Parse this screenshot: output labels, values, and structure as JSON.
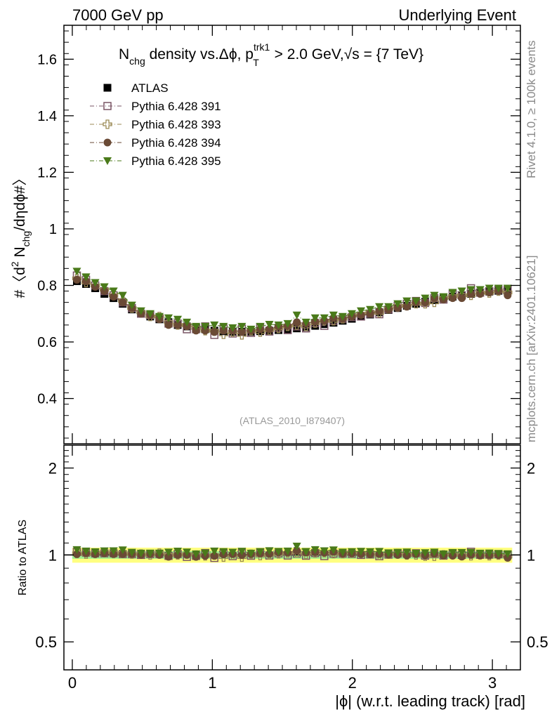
{
  "header": {
    "left": "7000 GeV pp",
    "right": "Underlying Event"
  },
  "side_labels": {
    "rivet": "Rivet 4.1.0, ≥ 100k events",
    "mcplots": "mcplots.cern.ch [arXiv:2401.10621]"
  },
  "chart_data": {
    "type": "scatter",
    "title": "N_chg density vs. Δϕ, p_T^trk1 > 2.0 GeV, √s = {7 TeV}",
    "title_parts": {
      "n": "N",
      "chg": "chg",
      "mid": " density vs.Δϕ, p",
      "trk1": "trk1",
      "t": "T",
      "tail": " > 2.0 GeV,",
      "sqrt": "√s",
      "end": " = {7 TeV}"
    },
    "watermark": "(ATLAS_2010_I879407)",
    "ylabel": "#〈d² N_chg/dηdϕ#〉",
    "ylabel_parts": {
      "a": "#〈d",
      "sq": "2",
      "b": " N",
      "chg": "chg",
      "c": "/dηdϕ#〉"
    },
    "xlabel": "|ϕ| (w.r.t. leading track) [rad]",
    "ratio_ylabel": "Ratio to ATLAS",
    "xlim": [
      -0.06,
      3.2
    ],
    "ylim": [
      0.24,
      1.72
    ],
    "ratio_ylim": [
      0.4,
      2.4
    ],
    "x_ticks": [
      0,
      1,
      2,
      3
    ],
    "x_tick_labels": [
      "0",
      "1",
      "2",
      "3"
    ],
    "y_ticks": [
      0.4,
      0.6,
      0.8,
      1,
      1.2,
      1.4,
      1.6
    ],
    "y_tick_labels": [
      "0.4",
      "0.6",
      "0.8",
      "1",
      "1.2",
      "1.4",
      "1.6"
    ],
    "ratio_ticks": [
      0.5,
      1,
      2
    ],
    "ratio_tick_labels": [
      "0.5",
      "1",
      "2"
    ],
    "legend_position": "top-left",
    "ratio_band_inner": 0.03,
    "ratio_band_outer": 0.06,
    "series": [
      {
        "name": "ATLAS",
        "marker": "square-filled",
        "color": "#000000",
        "x": [
          0.0327,
          0.0982,
          0.1636,
          0.2291,
          0.2945,
          0.36,
          0.4254,
          0.4909,
          0.5563,
          0.6218,
          0.6872,
          0.7527,
          0.8181,
          0.8836,
          0.949,
          1.0145,
          1.0799,
          1.1454,
          1.2108,
          1.2763,
          1.3417,
          1.4072,
          1.4726,
          1.5381,
          1.6035,
          1.669,
          1.7344,
          1.7999,
          1.8653,
          1.9308,
          1.9962,
          2.0617,
          2.1271,
          2.1926,
          2.258,
          2.3235,
          2.3889,
          2.4544,
          2.5198,
          2.5853,
          2.6507,
          2.7162,
          2.7816,
          2.8471,
          2.9125,
          2.978,
          3.0434,
          3.1089
        ],
        "y": [
          0.815,
          0.805,
          0.79,
          0.77,
          0.755,
          0.735,
          0.715,
          0.7,
          0.69,
          0.68,
          0.67,
          0.66,
          0.655,
          0.65,
          0.645,
          0.64,
          0.638,
          0.636,
          0.636,
          0.636,
          0.638,
          0.64,
          0.642,
          0.645,
          0.648,
          0.652,
          0.657,
          0.663,
          0.668,
          0.675,
          0.682,
          0.69,
          0.697,
          0.705,
          0.713,
          0.72,
          0.728,
          0.735,
          0.742,
          0.748,
          0.754,
          0.76,
          0.765,
          0.77,
          0.774,
          0.778,
          0.781,
          0.783
        ]
      },
      {
        "name": "Pythia 6.428 391",
        "marker": "square-open",
        "color": "#7a5565",
        "y": [
          0.835,
          0.82,
          0.8,
          0.78,
          0.765,
          0.74,
          0.72,
          0.7,
          0.695,
          0.685,
          0.665,
          0.665,
          0.645,
          0.645,
          0.655,
          0.625,
          0.648,
          0.63,
          0.647,
          0.632,
          0.652,
          0.637,
          0.65,
          0.642,
          0.655,
          0.648,
          0.667,
          0.657,
          0.675,
          0.682,
          0.688,
          0.69,
          0.7,
          0.698,
          0.715,
          0.728,
          0.735,
          0.745,
          0.738,
          0.755,
          0.75,
          0.77,
          0.765,
          0.79,
          0.775,
          0.78,
          0.785,
          0.785
        ]
      },
      {
        "name": "Pythia 6.428 393",
        "marker": "cross-open",
        "color": "#9b8a55",
        "y": [
          0.825,
          0.81,
          0.8,
          0.785,
          0.765,
          0.745,
          0.72,
          0.705,
          0.69,
          0.69,
          0.67,
          0.66,
          0.66,
          0.65,
          0.64,
          0.64,
          0.627,
          0.635,
          0.625,
          0.64,
          0.635,
          0.642,
          0.648,
          0.655,
          0.66,
          0.655,
          0.667,
          0.675,
          0.675,
          0.682,
          0.693,
          0.7,
          0.705,
          0.703,
          0.717,
          0.728,
          0.728,
          0.735,
          0.735,
          0.74,
          0.755,
          0.762,
          0.765,
          0.765,
          0.775,
          0.773,
          0.78,
          0.775
        ]
      },
      {
        "name": "Pythia 6.428 394",
        "marker": "circle-filled",
        "color": "#6a4a35",
        "y": [
          0.82,
          0.815,
          0.795,
          0.78,
          0.76,
          0.74,
          0.72,
          0.7,
          0.695,
          0.68,
          0.66,
          0.66,
          0.655,
          0.64,
          0.64,
          0.635,
          0.64,
          0.64,
          0.635,
          0.64,
          0.645,
          0.645,
          0.655,
          0.657,
          0.67,
          0.665,
          0.672,
          0.675,
          0.685,
          0.682,
          0.69,
          0.695,
          0.7,
          0.71,
          0.715,
          0.72,
          0.725,
          0.74,
          0.74,
          0.755,
          0.75,
          0.755,
          0.755,
          0.77,
          0.77,
          0.775,
          0.78,
          0.765
        ]
      },
      {
        "name": "Pythia 6.428 395",
        "marker": "triangle-down-filled",
        "color": "#4a7a1a",
        "y": [
          0.85,
          0.83,
          0.81,
          0.795,
          0.78,
          0.765,
          0.73,
          0.71,
          0.7,
          0.69,
          0.685,
          0.68,
          0.67,
          0.655,
          0.655,
          0.66,
          0.655,
          0.65,
          0.655,
          0.645,
          0.655,
          0.662,
          0.66,
          0.665,
          0.695,
          0.67,
          0.685,
          0.685,
          0.695,
          0.69,
          0.7,
          0.71,
          0.715,
          0.725,
          0.725,
          0.735,
          0.745,
          0.745,
          0.755,
          0.765,
          0.76,
          0.775,
          0.78,
          0.785,
          0.785,
          0.79,
          0.79,
          0.79
        ]
      }
    ]
  }
}
